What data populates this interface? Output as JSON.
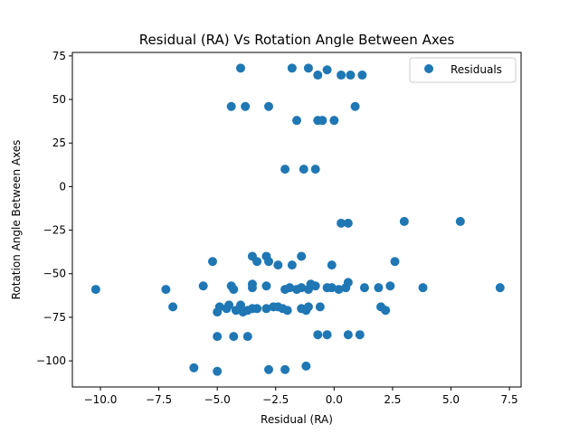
{
  "chart_data": {
    "type": "scatter",
    "title": "Residual (RA) Vs Rotation Angle Between Axes",
    "xlabel": "Residual (RA)",
    "ylabel": "Rotation Angle Between Axes",
    "xlim": [
      -11.2,
      8.0
    ],
    "ylim": [
      -115,
      77
    ],
    "xticks": [
      -10.0,
      -7.5,
      -5.0,
      -2.5,
      0.0,
      2.5,
      5.0,
      7.5
    ],
    "xtick_labels": [
      "−10.0",
      "−7.5",
      "−5.0",
      "−2.5",
      "0.0",
      "2.5",
      "5.0",
      "7.5"
    ],
    "yticks": [
      -100,
      -75,
      -50,
      -25,
      0,
      25,
      50,
      75
    ],
    "ytick_labels": [
      "−100",
      "−75",
      "−50",
      "−25",
      "0",
      "25",
      "50",
      "75"
    ],
    "grid": false,
    "legend_position": "top-right",
    "series": [
      {
        "name": "Residuals",
        "color": "#1f77b4",
        "points": [
          [
            -4.0,
            68
          ],
          [
            -1.8,
            68
          ],
          [
            -1.1,
            68
          ],
          [
            -0.3,
            67
          ],
          [
            0.3,
            64
          ],
          [
            0.7,
            64
          ],
          [
            1.2,
            64
          ],
          [
            -0.7,
            64
          ],
          [
            -4.4,
            46
          ],
          [
            -3.8,
            46
          ],
          [
            -2.8,
            46
          ],
          [
            0.9,
            46
          ],
          [
            -1.6,
            38
          ],
          [
            -0.7,
            38
          ],
          [
            -0.5,
            38
          ],
          [
            0.0,
            38
          ],
          [
            -2.1,
            10
          ],
          [
            -1.3,
            10
          ],
          [
            -0.8,
            10
          ],
          [
            0.3,
            -21
          ],
          [
            0.6,
            -21
          ],
          [
            3.0,
            -20
          ],
          [
            5.4,
            -20
          ],
          [
            -5.2,
            -43
          ],
          [
            2.6,
            -43
          ],
          [
            -3.5,
            -40
          ],
          [
            -1.4,
            -40
          ],
          [
            -2.9,
            -40
          ],
          [
            -2.8,
            -43
          ],
          [
            -3.3,
            -43
          ],
          [
            -2.4,
            -45
          ],
          [
            -1.8,
            -45
          ],
          [
            -0.1,
            -45
          ],
          [
            -10.2,
            -59
          ],
          [
            -7.2,
            -59
          ],
          [
            -5.6,
            -57
          ],
          [
            -4.4,
            -57
          ],
          [
            -4.3,
            -59
          ],
          [
            -3.5,
            -56
          ],
          [
            -3.5,
            -58
          ],
          [
            -2.9,
            -57
          ],
          [
            -2.1,
            -59
          ],
          [
            -1.9,
            -58
          ],
          [
            -1.6,
            -59
          ],
          [
            -1.4,
            -58
          ],
          [
            -1.1,
            -59
          ],
          [
            -1.0,
            -56
          ],
          [
            -0.8,
            -57
          ],
          [
            -0.3,
            -58
          ],
          [
            -0.1,
            -58
          ],
          [
            0.2,
            -59
          ],
          [
            0.5,
            -58
          ],
          [
            0.6,
            -55
          ],
          [
            1.3,
            -58
          ],
          [
            1.9,
            -58
          ],
          [
            2.4,
            -57
          ],
          [
            3.8,
            -58
          ],
          [
            7.1,
            -58
          ],
          [
            -6.9,
            -69
          ],
          [
            -5.0,
            -72
          ],
          [
            -4.9,
            -69
          ],
          [
            -4.6,
            -70
          ],
          [
            -4.5,
            -68
          ],
          [
            -4.2,
            -71
          ],
          [
            -4.0,
            -68
          ],
          [
            -3.9,
            -72
          ],
          [
            -3.7,
            -71
          ],
          [
            -3.5,
            -70
          ],
          [
            -3.3,
            -70
          ],
          [
            -2.9,
            -70
          ],
          [
            -2.6,
            -69
          ],
          [
            -2.4,
            -69
          ],
          [
            -2.2,
            -70
          ],
          [
            -2.0,
            -71
          ],
          [
            -1.4,
            -70
          ],
          [
            -1.2,
            -71
          ],
          [
            -1.1,
            -69
          ],
          [
            -0.6,
            -69
          ],
          [
            2.0,
            -69
          ],
          [
            2.2,
            -71
          ],
          [
            -5.0,
            -86
          ],
          [
            -4.3,
            -86
          ],
          [
            -3.7,
            -86
          ],
          [
            -0.7,
            -85
          ],
          [
            -0.3,
            -85
          ],
          [
            0.6,
            -85
          ],
          [
            1.1,
            -85
          ],
          [
            -6.0,
            -104
          ],
          [
            -5.0,
            -106
          ],
          [
            -2.8,
            -105
          ],
          [
            -2.1,
            -105
          ],
          [
            -1.2,
            -103
          ]
        ]
      }
    ]
  }
}
